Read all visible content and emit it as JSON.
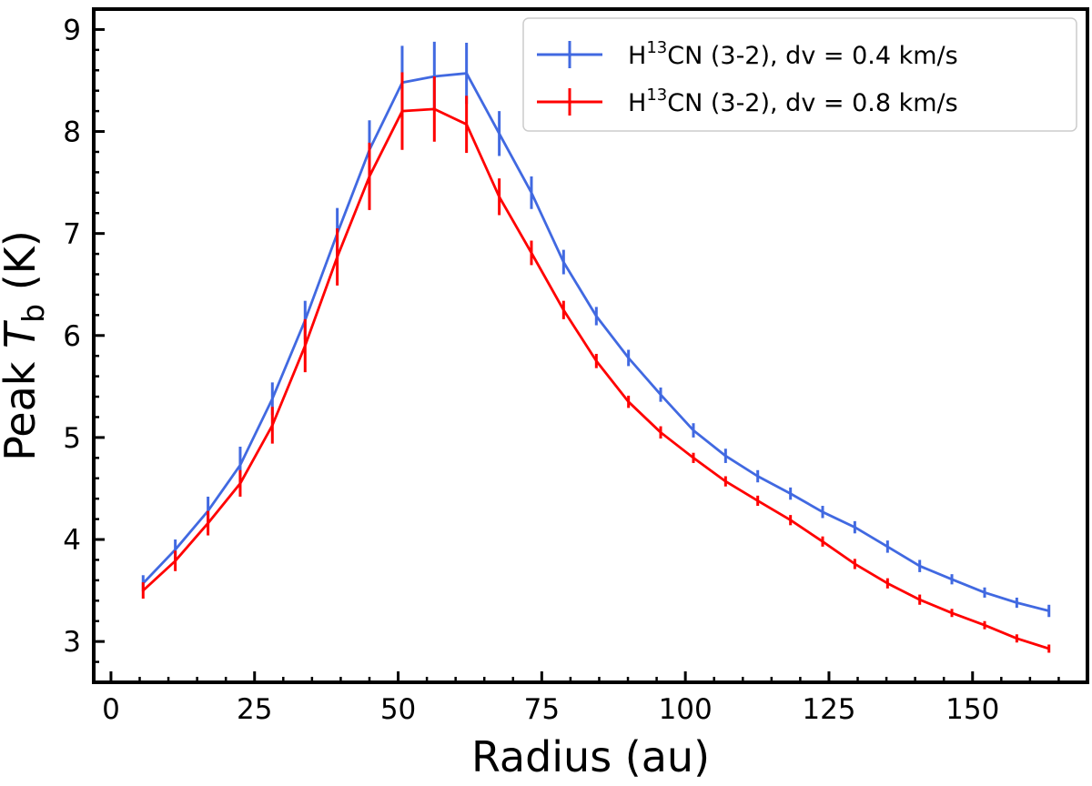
{
  "chart_data": {
    "type": "line",
    "title": "",
    "xlabel": "Radius (au)",
    "ylabel": {
      "prefix": "Peak ",
      "var": "T",
      "sub": "b",
      "suffix": " (K)"
    },
    "xlim": [
      -3,
      170
    ],
    "ylim": [
      2.6,
      9.2
    ],
    "xticks": [
      0,
      25,
      50,
      75,
      100,
      125,
      150
    ],
    "yticks": [
      3,
      4,
      5,
      6,
      7,
      8,
      9
    ],
    "grid": false,
    "legend_position": "upper right",
    "x": [
      5.6,
      11.2,
      16.9,
      22.5,
      28.1,
      33.8,
      39.4,
      45.0,
      50.7,
      56.3,
      61.9,
      67.6,
      73.2,
      78.8,
      84.5,
      90.1,
      95.7,
      101.4,
      107.0,
      112.6,
      118.3,
      123.9,
      129.5,
      135.2,
      140.8,
      146.4,
      152.1,
      157.7,
      163.3
    ],
    "series": [
      {
        "name": "H13CN (3-2), dv = 0.4 km/s",
        "legend": {
          "pre": "H",
          "sup": "13",
          "post": "CN (3-2), dv = 0.4 km/s"
        },
        "color": "#4169E1",
        "values": [
          3.57,
          3.9,
          4.28,
          4.73,
          5.38,
          6.15,
          7.0,
          7.82,
          8.48,
          8.54,
          8.57,
          7.98,
          7.4,
          6.72,
          6.19,
          5.78,
          5.42,
          5.07,
          4.82,
          4.62,
          4.45,
          4.27,
          4.12,
          3.93,
          3.74,
          3.61,
          3.48,
          3.38,
          3.3
        ],
        "errors": [
          0.08,
          0.1,
          0.14,
          0.18,
          0.16,
          0.19,
          0.25,
          0.29,
          0.36,
          0.34,
          0.3,
          0.22,
          0.16,
          0.12,
          0.09,
          0.08,
          0.07,
          0.07,
          0.07,
          0.06,
          0.06,
          0.06,
          0.06,
          0.06,
          0.06,
          0.05,
          0.05,
          0.05,
          0.06
        ]
      },
      {
        "name": "H13CN (3-2), dv = 0.8 km/s",
        "legend": {
          "pre": "H",
          "sup": "13",
          "post": "CN (3-2), dv = 0.8 km/s"
        },
        "color": "#FF0000",
        "values": [
          3.5,
          3.79,
          4.16,
          4.55,
          5.12,
          5.9,
          6.77,
          7.56,
          8.2,
          8.22,
          8.07,
          7.36,
          6.81,
          6.25,
          5.75,
          5.35,
          5.05,
          4.8,
          4.57,
          4.38,
          4.19,
          3.98,
          3.76,
          3.57,
          3.41,
          3.28,
          3.16,
          3.03,
          2.93
        ],
        "errors": [
          0.08,
          0.1,
          0.12,
          0.13,
          0.18,
          0.26,
          0.28,
          0.33,
          0.38,
          0.32,
          0.28,
          0.18,
          0.12,
          0.09,
          0.07,
          0.06,
          0.06,
          0.05,
          0.05,
          0.05,
          0.05,
          0.05,
          0.05,
          0.05,
          0.05,
          0.04,
          0.04,
          0.04,
          0.04
        ]
      }
    ]
  }
}
